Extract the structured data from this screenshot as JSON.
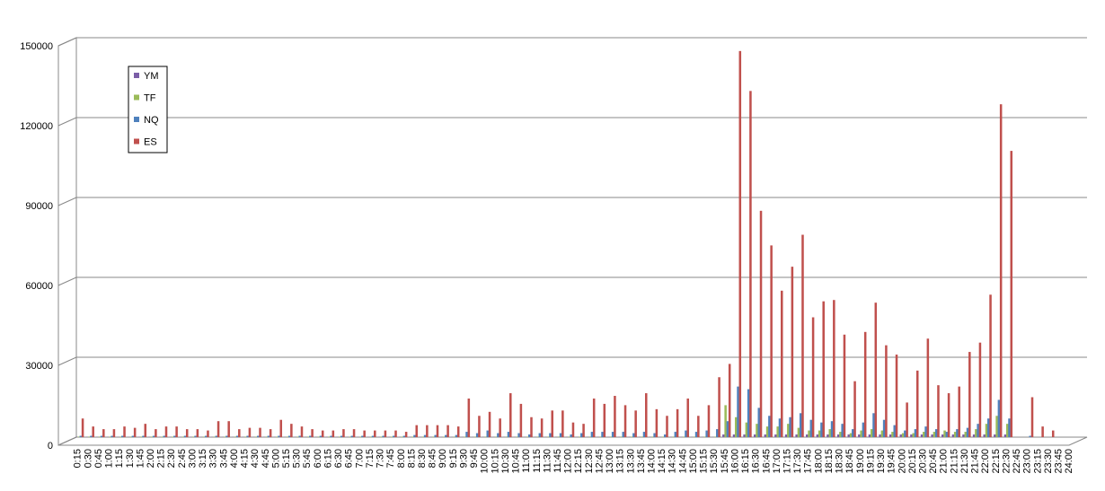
{
  "chart_data": {
    "type": "bar",
    "categories": [
      "0:15",
      "0:30",
      "0:45",
      "1:00",
      "1:15",
      "1:30",
      "1:45",
      "2:00",
      "2:15",
      "2:30",
      "2:45",
      "3:00",
      "3:15",
      "3:30",
      "3:45",
      "4:00",
      "4:15",
      "4:30",
      "4:45",
      "5:00",
      "5:15",
      "5:30",
      "5:45",
      "6:00",
      "6:15",
      "6:30",
      "6:45",
      "7:00",
      "7:15",
      "7:30",
      "7:45",
      "8:00",
      "8:15",
      "8:30",
      "8:45",
      "9:00",
      "9:15",
      "9:30",
      "9:45",
      "10:00",
      "10:15",
      "10:30",
      "10:45",
      "11:00",
      "11:15",
      "11:30",
      "11:45",
      "12:00",
      "12:15",
      "12:30",
      "12:45",
      "13:00",
      "13:15",
      "13:30",
      "13:45",
      "14:00",
      "14:15",
      "14:30",
      "14:45",
      "15:00",
      "15:15",
      "15:30",
      "15:45",
      "16:00",
      "16:15",
      "16:30",
      "16:45",
      "17:00",
      "17:15",
      "17:30",
      "17:45",
      "18:00",
      "18:15",
      "18:30",
      "18:45",
      "19:00",
      "19:15",
      "19:30",
      "19:45",
      "20:00",
      "20:15",
      "20:30",
      "20:45",
      "21:00",
      "21:15",
      "21:30",
      "21:45",
      "22:00",
      "22:15",
      "22:30",
      "22:45",
      "23:00",
      "23:15",
      "23:30",
      "23:45",
      "24:00"
    ],
    "series": [
      {
        "name": "YM",
        "color": "#7b5ea7",
        "values": [
          100,
          100,
          100,
          100,
          100,
          100,
          100,
          100,
          100,
          100,
          100,
          100,
          100,
          100,
          100,
          100,
          100,
          100,
          100,
          100,
          100,
          100,
          100,
          100,
          100,
          100,
          100,
          100,
          100,
          100,
          100,
          100,
          100,
          100,
          100,
          100,
          100,
          100,
          100,
          100,
          100,
          100,
          100,
          100,
          100,
          100,
          100,
          100,
          100,
          100,
          100,
          100,
          100,
          100,
          100,
          100,
          100,
          100,
          100,
          100,
          100,
          100,
          1000,
          1000,
          1000,
          1000,
          1000,
          1000,
          1000,
          1000,
          1000,
          1000,
          1000,
          1000,
          1000,
          1000,
          1000,
          1000,
          1000,
          1000,
          1000,
          1000,
          1000,
          1000,
          1000,
          1000,
          1000,
          1000,
          1000,
          1000,
          0,
          0,
          0,
          0,
          0,
          0
        ]
      },
      {
        "name": "TF",
        "color": "#9bbb59",
        "values": [
          200,
          200,
          200,
          200,
          200,
          200,
          200,
          200,
          200,
          200,
          200,
          200,
          200,
          200,
          200,
          200,
          200,
          200,
          200,
          200,
          200,
          200,
          200,
          200,
          200,
          200,
          200,
          200,
          200,
          200,
          200,
          200,
          200,
          200,
          200,
          200,
          200,
          200,
          200,
          200,
          200,
          200,
          200,
          200,
          200,
          200,
          200,
          200,
          200,
          200,
          200,
          200,
          200,
          200,
          200,
          200,
          200,
          200,
          200,
          200,
          200,
          200,
          12000,
          7500,
          5500,
          5000,
          4000,
          4000,
          5000,
          3500,
          2500,
          2500,
          3000,
          2000,
          1500,
          2500,
          3000,
          2500,
          2000,
          1500,
          1500,
          2000,
          2000,
          2500,
          2000,
          2000,
          3000,
          5000,
          8000,
          5000,
          0,
          0,
          0,
          0,
          0,
          0
        ]
      },
      {
        "name": "NQ",
        "color": "#4f81bd",
        "values": [
          500,
          500,
          500,
          500,
          500,
          500,
          500,
          500,
          500,
          500,
          500,
          500,
          500,
          500,
          500,
          500,
          500,
          500,
          500,
          500,
          500,
          500,
          500,
          500,
          500,
          500,
          500,
          500,
          500,
          500,
          500,
          500,
          800,
          800,
          800,
          800,
          800,
          2000,
          1500,
          2500,
          1500,
          2000,
          1500,
          1000,
          1500,
          1500,
          1500,
          1000,
          1500,
          2000,
          2000,
          2000,
          2000,
          1500,
          2000,
          1500,
          1000,
          2000,
          2500,
          2000,
          2500,
          3000,
          6000,
          19000,
          18000,
          11000,
          8000,
          7000,
          7500,
          9000,
          6500,
          5500,
          6000,
          5000,
          3000,
          5500,
          9000,
          6500,
          4500,
          2500,
          3000,
          4000,
          3000,
          2000,
          3000,
          3500,
          5000,
          7000,
          14000,
          7000,
          0,
          500,
          0,
          0,
          0,
          0
        ]
      },
      {
        "name": "ES",
        "color": "#c0504d",
        "values": [
          7000,
          4000,
          3000,
          3000,
          4000,
          3500,
          5000,
          3000,
          4000,
          4000,
          3000,
          3000,
          2500,
          6000,
          6000,
          3000,
          3500,
          3500,
          3000,
          6500,
          5000,
          4000,
          3000,
          2500,
          2500,
          3000,
          3000,
          2500,
          2500,
          2500,
          2500,
          2000,
          4500,
          4500,
          4500,
          4500,
          4000,
          14500,
          8000,
          9500,
          7000,
          16500,
          12500,
          7500,
          7000,
          10000,
          10000,
          5500,
          5000,
          14500,
          12500,
          15500,
          12000,
          10000,
          16500,
          10500,
          8000,
          10500,
          14500,
          8000,
          12000,
          22500,
          27500,
          145000,
          130000,
          85000,
          72000,
          55000,
          64000,
          76000,
          45000,
          51000,
          51500,
          38500,
          21000,
          39500,
          50500,
          34500,
          31000,
          13000,
          25000,
          37000,
          19500,
          16500,
          19000,
          32000,
          35500,
          53500,
          125000,
          107500,
          0,
          15000,
          4000,
          2500,
          0,
          0
        ]
      }
    ],
    "ylim": [
      0,
      150000
    ],
    "yticks": [
      0,
      30000,
      60000,
      90000,
      120000,
      150000
    ],
    "grid": true
  }
}
